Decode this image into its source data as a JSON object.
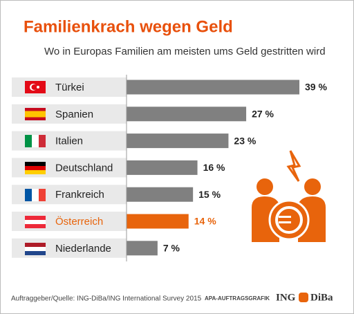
{
  "chart_data": {
    "type": "bar",
    "title": "Familienkrach wegen Geld",
    "subtitle": "Wo in Europas Familien am meisten ums Geld gestritten wird",
    "categories": [
      "Türkei",
      "Spanien",
      "Italien",
      "Deutschland",
      "Frankreich",
      "Österreich",
      "Niederlande"
    ],
    "values": [
      39,
      27,
      23,
      16,
      15,
      14,
      7
    ],
    "value_labels": [
      "39 %",
      "27 %",
      "23 %",
      "16 %",
      "15 %",
      "14 %",
      "7 %"
    ],
    "colors": [
      "#808080",
      "#808080",
      "#808080",
      "#808080",
      "#808080",
      "#e8640c",
      "#808080"
    ],
    "label_colors": [
      "#222222",
      "#222222",
      "#222222",
      "#222222",
      "#222222",
      "#e8640c",
      "#222222"
    ],
    "source": "Auftraggeber/Quelle: ING-DiBa/ING International Survey 2015",
    "agency": "APA-AUFTRAGSGRAFIK",
    "logo": [
      "ING",
      "DiBa"
    ]
  }
}
